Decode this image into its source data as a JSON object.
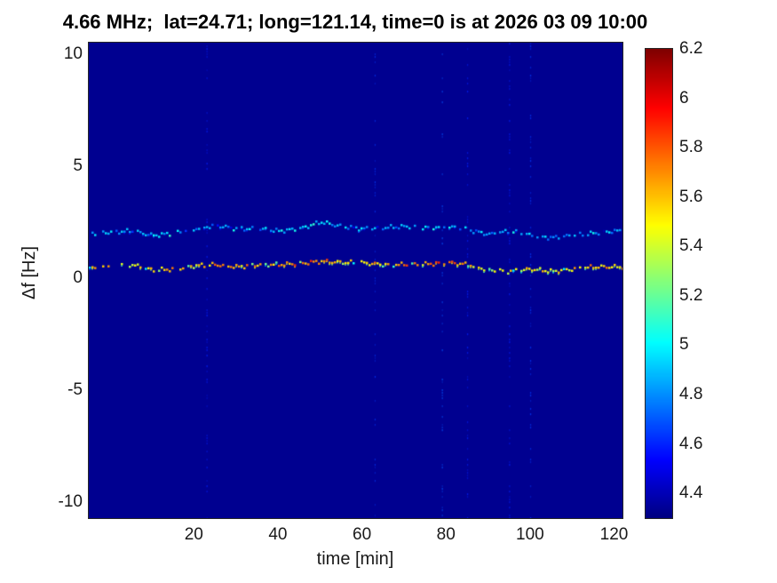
{
  "chart_data": {
    "type": "heatmap",
    "title": "4.66 MHz;  lat=24.71; long=121.14, time=0 is at 2026 03 09 10:00",
    "xlabel": "time [min]",
    "ylabel": "Δf [Hz]",
    "x_range": [
      -5,
      122
    ],
    "y_range": [
      -10.7,
      10.5
    ],
    "x_ticks": [
      20,
      40,
      60,
      80,
      100,
      120
    ],
    "y_ticks": [
      10,
      5,
      0,
      -5,
      -10
    ],
    "grid": false,
    "colormap": "jet",
    "background_value": 4.33,
    "colorbar": {
      "min": 4.3,
      "max": 6.2,
      "ticks": [
        4.4,
        4.6,
        4.8,
        5,
        5.2,
        5.4,
        5.6,
        5.8,
        6,
        6.2
      ],
      "position": "right"
    },
    "traces": [
      {
        "name": "upper-doppler-trace",
        "x": [
          -5,
          0,
          5,
          10,
          15,
          20,
          25,
          30,
          35,
          40,
          45,
          50,
          55,
          60,
          65,
          70,
          75,
          80,
          85,
          90,
          95,
          100,
          105,
          110,
          115,
          120,
          122
        ],
        "y": [
          2.0,
          2.05,
          2.1,
          1.9,
          2.0,
          2.2,
          2.35,
          2.2,
          2.2,
          2.1,
          2.2,
          2.5,
          2.3,
          2.2,
          2.25,
          2.3,
          2.25,
          2.3,
          2.15,
          1.95,
          2.1,
          1.9,
          1.8,
          1.9,
          2.0,
          2.1,
          2.1
        ],
        "v": [
          4.85,
          4.9,
          4.8,
          4.9,
          5.0,
          4.9,
          4.85,
          4.9,
          4.8,
          4.9,
          5.0,
          4.95,
          4.85,
          4.9,
          4.8,
          4.85,
          4.95,
          4.9,
          4.8,
          4.85,
          4.9,
          4.8,
          4.8,
          4.85,
          4.9,
          4.85,
          4.85
        ]
      },
      {
        "name": "lower-doppler-trace",
        "x": [
          -5,
          0,
          5,
          10,
          15,
          20,
          25,
          30,
          35,
          40,
          45,
          50,
          55,
          60,
          65,
          70,
          75,
          80,
          85,
          90,
          95,
          100,
          105,
          110,
          115,
          120,
          122
        ],
        "y": [
          0.5,
          0.55,
          0.6,
          0.35,
          0.4,
          0.55,
          0.6,
          0.5,
          0.6,
          0.6,
          0.65,
          0.75,
          0.7,
          0.68,
          0.6,
          0.6,
          0.62,
          0.7,
          0.6,
          0.35,
          0.3,
          0.4,
          0.3,
          0.4,
          0.5,
          0.5,
          0.5
        ],
        "v": [
          5.5,
          5.6,
          5.45,
          5.6,
          5.65,
          5.5,
          5.7,
          5.6,
          5.7,
          5.65,
          5.75,
          5.7,
          5.6,
          5.55,
          5.6,
          5.7,
          5.75,
          5.8,
          5.6,
          5.35,
          5.45,
          5.5,
          5.45,
          5.5,
          5.6,
          5.55,
          5.5
        ]
      }
    ],
    "vertical_streaks": [
      {
        "x": 23,
        "v": 4.6
      },
      {
        "x": 63,
        "v": 4.65
      },
      {
        "x": 79,
        "v": 4.7
      },
      {
        "x": 85,
        "v": 4.6
      },
      {
        "x": 95,
        "v": 4.6
      },
      {
        "x": 100,
        "v": 4.65
      }
    ]
  }
}
